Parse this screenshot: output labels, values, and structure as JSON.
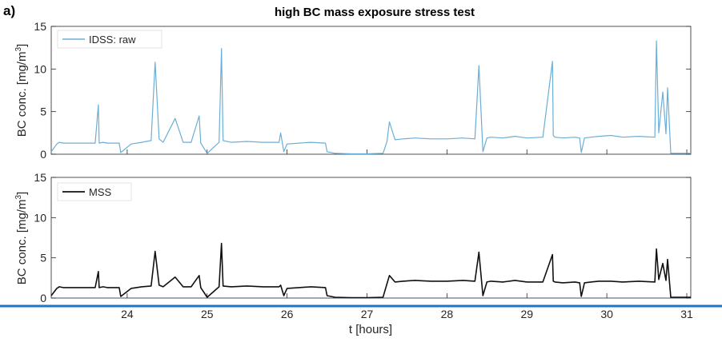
{
  "figure": {
    "panel_letter": "a)",
    "title": "high BC mass exposure stress test",
    "xlabel": "t [hours]",
    "separator_color": "#1f77c4"
  },
  "chart_data": [
    {
      "type": "line",
      "title": "high BC mass exposure stress test",
      "xlabel": "",
      "ylabel": "BC conc. [mg/m3]",
      "ylabel_base": "BC conc. [mg/m",
      "ylabel_sup": "3",
      "ylabel_tail": "]",
      "xlim": [
        23.05,
        31.05
      ],
      "ylim": [
        0,
        15
      ],
      "yticks": [
        0,
        5,
        10,
        15
      ],
      "xticks": [],
      "grid": false,
      "legend_position": "top-left",
      "series": [
        {
          "name": "IDSS: raw",
          "color": "#6baed6",
          "x": [
            23.05,
            23.12,
            23.15,
            23.2,
            23.6,
            23.64,
            23.65,
            23.7,
            23.75,
            23.9,
            23.92,
            24.05,
            24.18,
            24.3,
            24.35,
            24.4,
            24.45,
            24.6,
            24.7,
            24.8,
            24.9,
            24.92,
            25.0,
            25.15,
            25.18,
            25.2,
            25.3,
            25.5,
            25.7,
            25.9,
            25.92,
            25.96,
            26.0,
            26.15,
            26.3,
            26.48,
            26.5,
            26.6,
            26.8,
            27.0,
            27.2,
            27.25,
            27.28,
            27.35,
            27.45,
            27.6,
            27.8,
            28.0,
            28.2,
            28.35,
            28.4,
            28.45,
            28.5,
            28.55,
            28.7,
            28.85,
            29.0,
            29.2,
            29.32,
            29.33,
            29.35,
            29.45,
            29.6,
            29.66,
            29.68,
            29.72,
            29.8,
            29.9,
            30.05,
            30.2,
            30.4,
            30.6,
            30.62,
            30.65,
            30.7,
            30.74,
            30.76,
            30.8,
            31.05
          ],
          "y": [
            0.3,
            1.2,
            1.4,
            1.3,
            1.3,
            5.8,
            1.3,
            1.4,
            1.3,
            1.3,
            0.2,
            1.2,
            1.4,
            1.6,
            10.8,
            1.8,
            1.4,
            4.2,
            1.4,
            1.4,
            4.5,
            1.3,
            0.1,
            1.4,
            12.4,
            1.6,
            1.4,
            1.5,
            1.4,
            1.4,
            2.5,
            0.3,
            1.2,
            1.3,
            1.4,
            1.3,
            0.3,
            0.1,
            0.05,
            0.05,
            0.1,
            1.5,
            3.8,
            1.7,
            1.8,
            1.9,
            1.8,
            1.8,
            1.9,
            1.8,
            10.4,
            0.3,
            1.9,
            2.0,
            1.9,
            2.1,
            1.9,
            2.0,
            10.9,
            2.2,
            2.0,
            1.9,
            2.0,
            1.9,
            0.2,
            1.9,
            2.0,
            2.1,
            2.2,
            2.0,
            2.1,
            2.0,
            13.3,
            2.5,
            7.3,
            2.4,
            7.8,
            0.1,
            0.1
          ]
        }
      ]
    },
    {
      "type": "line",
      "title": "",
      "xlabel": "t [hours]",
      "ylabel": "BC conc. [mg/m3]",
      "ylabel_base": "BC conc. [mg/m",
      "ylabel_sup": "3",
      "ylabel_tail": "]",
      "xlim": [
        23.05,
        31.05
      ],
      "ylim": [
        0,
        15
      ],
      "yticks": [
        0,
        5,
        10,
        15
      ],
      "xticks": [
        24,
        25,
        26,
        27,
        28,
        29,
        30,
        31
      ],
      "grid": false,
      "legend_position": "top-left",
      "series": [
        {
          "name": "MSS",
          "color": "#111111",
          "x": [
            23.05,
            23.12,
            23.15,
            23.2,
            23.6,
            23.64,
            23.65,
            23.7,
            23.75,
            23.9,
            23.92,
            24.05,
            24.18,
            24.3,
            24.35,
            24.4,
            24.45,
            24.6,
            24.7,
            24.8,
            24.9,
            24.92,
            25.0,
            25.15,
            25.18,
            25.2,
            25.3,
            25.5,
            25.7,
            25.9,
            25.92,
            25.96,
            26.0,
            26.15,
            26.3,
            26.48,
            26.5,
            26.6,
            26.8,
            27.0,
            27.2,
            27.25,
            27.28,
            27.35,
            27.45,
            27.6,
            27.8,
            28.0,
            28.2,
            28.35,
            28.4,
            28.45,
            28.5,
            28.55,
            28.7,
            28.85,
            29.0,
            29.2,
            29.32,
            29.33,
            29.35,
            29.45,
            29.6,
            29.66,
            29.68,
            29.72,
            29.8,
            29.9,
            30.05,
            30.2,
            30.4,
            30.6,
            30.62,
            30.65,
            30.7,
            30.74,
            30.76,
            30.8,
            31.05
          ],
          "y": [
            0.3,
            1.2,
            1.4,
            1.3,
            1.3,
            3.3,
            1.3,
            1.4,
            1.3,
            1.3,
            0.2,
            1.2,
            1.4,
            1.5,
            5.8,
            1.6,
            1.4,
            2.6,
            1.4,
            1.4,
            2.8,
            1.3,
            0.1,
            1.4,
            6.8,
            1.5,
            1.4,
            1.5,
            1.4,
            1.4,
            1.6,
            0.3,
            1.2,
            1.3,
            1.4,
            1.3,
            0.3,
            0.1,
            0.05,
            0.05,
            0.1,
            1.8,
            2.8,
            2.0,
            2.1,
            2.2,
            2.1,
            2.1,
            2.2,
            2.1,
            5.7,
            0.3,
            2.0,
            2.1,
            2.0,
            2.2,
            2.0,
            2.0,
            5.4,
            2.1,
            2.0,
            1.9,
            2.0,
            1.9,
            0.2,
            1.9,
            2.0,
            2.1,
            2.1,
            2.0,
            2.1,
            2.0,
            6.1,
            2.3,
            4.3,
            2.2,
            4.8,
            0.1,
            0.1
          ]
        }
      ]
    }
  ]
}
